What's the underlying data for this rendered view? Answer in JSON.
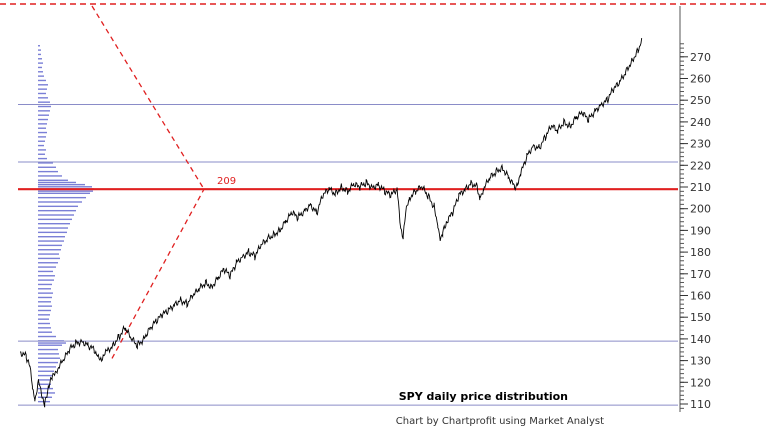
{
  "chart_data": {
    "type": "line",
    "title": "SPY daily price distribution",
    "credit": "Chart by Chartprofit using Market Analyst",
    "xlabel": "",
    "ylabel": "",
    "ylim": [
      108,
      277
    ],
    "y_ticks": [
      110,
      120,
      130,
      140,
      150,
      160,
      170,
      180,
      190,
      200,
      210,
      220,
      230,
      240,
      250,
      260,
      270
    ],
    "y_tick_labels": [
      "110",
      "120",
      "130",
      "140",
      "150",
      "160",
      "170",
      "180",
      "190",
      "200",
      "210",
      "220",
      "230",
      "240",
      "250",
      "260",
      "270"
    ],
    "horizontal_lines": [
      {
        "value": 209,
        "label": "209",
        "color": "#e02020"
      },
      {
        "value": 139,
        "color": "#8a8cc8"
      },
      {
        "value": 221.5,
        "color": "#8a8cc8"
      },
      {
        "value": 248,
        "color": "#8a8cc8"
      },
      {
        "value": 109.5,
        "color": "#8a8cc8"
      }
    ],
    "series": [
      {
        "color": "#000000",
        "points": [
          [
            0,
            134
          ],
          [
            5,
            132
          ],
          [
            8,
            127
          ],
          [
            10,
            118
          ],
          [
            12,
            112
          ],
          [
            15,
            120
          ],
          [
            18,
            114
          ],
          [
            20,
            110
          ],
          [
            23,
            118
          ],
          [
            26,
            122
          ],
          [
            30,
            126
          ],
          [
            35,
            130
          ],
          [
            40,
            135
          ],
          [
            45,
            138
          ],
          [
            50,
            139
          ],
          [
            55,
            137
          ],
          [
            60,
            135
          ],
          [
            62,
            133
          ],
          [
            66,
            131
          ],
          [
            70,
            134
          ],
          [
            75,
            137
          ],
          [
            80,
            141
          ],
          [
            85,
            145
          ],
          [
            90,
            140
          ],
          [
            95,
            137
          ],
          [
            100,
            140
          ],
          [
            105,
            145
          ],
          [
            110,
            148
          ],
          [
            115,
            151
          ],
          [
            120,
            153
          ],
          [
            125,
            156
          ],
          [
            130,
            158
          ],
          [
            135,
            156
          ],
          [
            140,
            160
          ],
          [
            145,
            163
          ],
          [
            150,
            166
          ],
          [
            155,
            164
          ],
          [
            160,
            168
          ],
          [
            165,
            172
          ],
          [
            170,
            169
          ],
          [
            175,
            175
          ],
          [
            180,
            178
          ],
          [
            185,
            180
          ],
          [
            190,
            178
          ],
          [
            195,
            183
          ],
          [
            200,
            186
          ],
          [
            205,
            188
          ],
          [
            210,
            190
          ],
          [
            215,
            194
          ],
          [
            220,
            198
          ],
          [
            225,
            196
          ],
          [
            230,
            199
          ],
          [
            235,
            202
          ],
          [
            240,
            198
          ],
          [
            245,
            206
          ],
          [
            250,
            209
          ],
          [
            255,
            207
          ],
          [
            260,
            210
          ],
          [
            265,
            208
          ],
          [
            270,
            211
          ],
          [
            275,
            210
          ],
          [
            280,
            212
          ],
          [
            285,
            210
          ],
          [
            290,
            211
          ],
          [
            295,
            208
          ],
          [
            300,
            206
          ],
          [
            305,
            209
          ],
          [
            308,
            192
          ],
          [
            310,
            187
          ],
          [
            312,
            198
          ],
          [
            315,
            205
          ],
          [
            320,
            208
          ],
          [
            325,
            210
          ],
          [
            330,
            206
          ],
          [
            335,
            201
          ],
          [
            338,
            193
          ],
          [
            340,
            186
          ],
          [
            342,
            189
          ],
          [
            345,
            194
          ],
          [
            350,
            198
          ],
          [
            355,
            206
          ],
          [
            360,
            209
          ],
          [
            365,
            212
          ],
          [
            370,
            210
          ],
          [
            372,
            205
          ],
          [
            375,
            209
          ],
          [
            380,
            214
          ],
          [
            385,
            217
          ],
          [
            390,
            219
          ],
          [
            395,
            215
          ],
          [
            400,
            210
          ],
          [
            402,
            211
          ],
          [
            405,
            216
          ],
          [
            410,
            224
          ],
          [
            415,
            229
          ],
          [
            420,
            228
          ],
          [
            425,
            233
          ],
          [
            430,
            238
          ],
          [
            435,
            236
          ],
          [
            440,
            240
          ],
          [
            445,
            238
          ],
          [
            450,
            242
          ],
          [
            455,
            244
          ],
          [
            460,
            241
          ],
          [
            465,
            245
          ],
          [
            470,
            248
          ],
          [
            475,
            250
          ],
          [
            480,
            255
          ],
          [
            485,
            258
          ],
          [
            490,
            263
          ],
          [
            495,
            268
          ],
          [
            500,
            273
          ],
          [
            503,
            277
          ]
        ]
      }
    ],
    "volume_profile": [
      {
        "price": 111,
        "value": 12
      },
      {
        "price": 113,
        "value": 14
      },
      {
        "price": 115,
        "value": 17
      },
      {
        "price": 117,
        "value": 15
      },
      {
        "price": 119,
        "value": 13
      },
      {
        "price": 121,
        "value": 12
      },
      {
        "price": 123,
        "value": 14
      },
      {
        "price": 125,
        "value": 16
      },
      {
        "price": 127,
        "value": 18
      },
      {
        "price": 129,
        "value": 20
      },
      {
        "price": 131,
        "value": 22
      },
      {
        "price": 133,
        "value": 21
      },
      {
        "price": 135,
        "value": 20
      },
      {
        "price": 137,
        "value": 24
      },
      {
        "price": 138,
        "value": 28
      },
      {
        "price": 139,
        "value": 26
      },
      {
        "price": 141,
        "value": 18
      },
      {
        "price": 143,
        "value": 14
      },
      {
        "price": 145,
        "value": 13
      },
      {
        "price": 147,
        "value": 12
      },
      {
        "price": 149,
        "value": 11
      },
      {
        "price": 151,
        "value": 12
      },
      {
        "price": 153,
        "value": 13
      },
      {
        "price": 155,
        "value": 14
      },
      {
        "price": 157,
        "value": 13
      },
      {
        "price": 159,
        "value": 14
      },
      {
        "price": 161,
        "value": 15
      },
      {
        "price": 163,
        "value": 13
      },
      {
        "price": 165,
        "value": 14
      },
      {
        "price": 167,
        "value": 16
      },
      {
        "price": 169,
        "value": 17
      },
      {
        "price": 171,
        "value": 15
      },
      {
        "price": 173,
        "value": 18
      },
      {
        "price": 175,
        "value": 20
      },
      {
        "price": 177,
        "value": 22
      },
      {
        "price": 179,
        "value": 21
      },
      {
        "price": 181,
        "value": 23
      },
      {
        "price": 183,
        "value": 24
      },
      {
        "price": 185,
        "value": 26
      },
      {
        "price": 187,
        "value": 27
      },
      {
        "price": 189,
        "value": 29
      },
      {
        "price": 191,
        "value": 30
      },
      {
        "price": 193,
        "value": 32
      },
      {
        "price": 195,
        "value": 34
      },
      {
        "price": 197,
        "value": 36
      },
      {
        "price": 199,
        "value": 38
      },
      {
        "price": 201,
        "value": 40
      },
      {
        "price": 203,
        "value": 44
      },
      {
        "price": 205,
        "value": 48
      },
      {
        "price": 207,
        "value": 52
      },
      {
        "price": 208,
        "value": 55
      },
      {
        "price": 209,
        "value": 56
      },
      {
        "price": 210,
        "value": 54
      },
      {
        "price": 211,
        "value": 47
      },
      {
        "price": 212,
        "value": 38
      },
      {
        "price": 213,
        "value": 30
      },
      {
        "price": 215,
        "value": 24
      },
      {
        "price": 217,
        "value": 20
      },
      {
        "price": 219,
        "value": 18
      },
      {
        "price": 221,
        "value": 15
      },
      {
        "price": 223,
        "value": 9
      },
      {
        "price": 225,
        "value": 7
      },
      {
        "price": 227,
        "value": 8
      },
      {
        "price": 229,
        "value": 6
      },
      {
        "price": 231,
        "value": 7
      },
      {
        "price": 233,
        "value": 8
      },
      {
        "price": 235,
        "value": 9
      },
      {
        "price": 237,
        "value": 8
      },
      {
        "price": 239,
        "value": 9
      },
      {
        "price": 241,
        "value": 10
      },
      {
        "price": 243,
        "value": 11
      },
      {
        "price": 245,
        "value": 12
      },
      {
        "price": 247,
        "value": 13
      },
      {
        "price": 249,
        "value": 12
      },
      {
        "price": 251,
        "value": 10
      },
      {
        "price": 253,
        "value": 8
      },
      {
        "price": 255,
        "value": 9
      },
      {
        "price": 257,
        "value": 10
      },
      {
        "price": 259,
        "value": 8
      },
      {
        "price": 261,
        "value": 6
      },
      {
        "price": 263,
        "value": 5
      },
      {
        "price": 265,
        "value": 4
      },
      {
        "price": 267,
        "value": 5
      },
      {
        "price": 269,
        "value": 4
      },
      {
        "price": 271,
        "value": 3
      },
      {
        "price": 273,
        "value": 3
      },
      {
        "price": 275,
        "value": 2
      }
    ],
    "volume_profile_color": "#7a7fd6",
    "annotations": [
      {
        "type": "dashed-lines",
        "color": "#e02020"
      }
    ],
    "grid": false,
    "legend": "none"
  }
}
